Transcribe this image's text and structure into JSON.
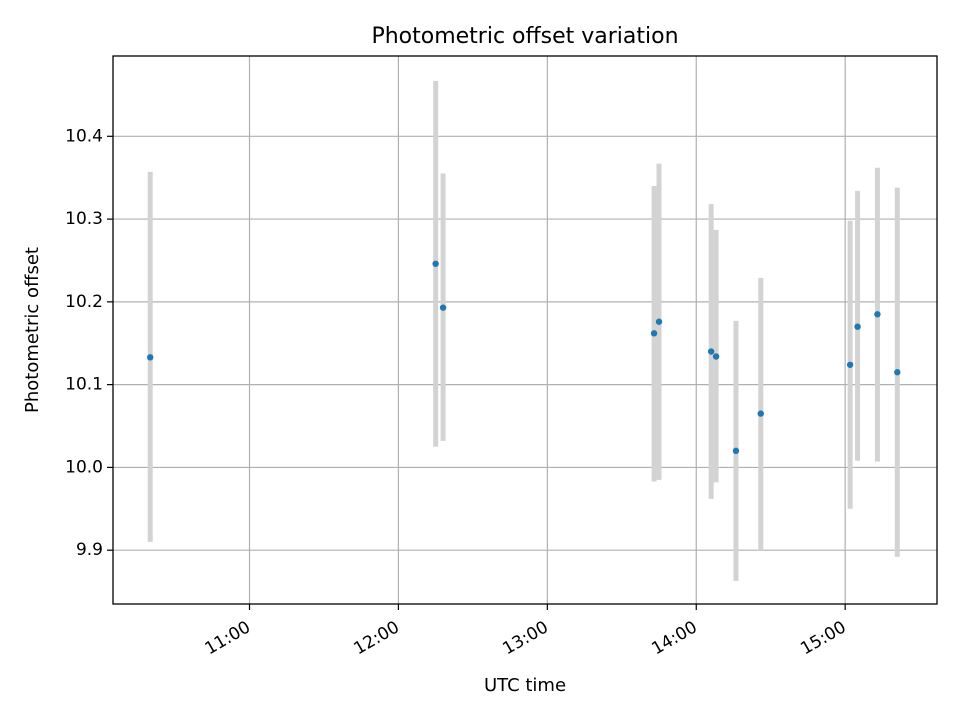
{
  "chart_data": {
    "type": "scatter",
    "title": "Photometric offset variation",
    "xlabel": "UTC time",
    "ylabel": "Photometric offset",
    "xlim": [
      "10:05",
      "15:37"
    ],
    "ylim": [
      9.835,
      10.497
    ],
    "x_ticks": [
      "11:00",
      "12:00",
      "13:00",
      "14:00",
      "15:00"
    ],
    "y_ticks": [
      9.9,
      10.0,
      10.1,
      10.2,
      10.3,
      10.4
    ],
    "grid": true,
    "legend": "none",
    "colors": {
      "point": "#1f77b4",
      "errorbar": "#d3d3d3"
    },
    "points": [
      {
        "x": "10:20",
        "y": 10.133,
        "ylow": 9.91,
        "yhigh": 10.357
      },
      {
        "x": "12:15",
        "y": 10.246,
        "ylow": 10.025,
        "yhigh": 10.467
      },
      {
        "x": "12:18",
        "y": 10.193,
        "ylow": 10.032,
        "yhigh": 10.355
      },
      {
        "x": "13:43",
        "y": 10.162,
        "ylow": 9.983,
        "yhigh": 10.34
      },
      {
        "x": "13:45",
        "y": 10.176,
        "ylow": 9.985,
        "yhigh": 10.367
      },
      {
        "x": "14:06",
        "y": 10.14,
        "ylow": 9.962,
        "yhigh": 10.318
      },
      {
        "x": "14:08",
        "y": 10.134,
        "ylow": 9.982,
        "yhigh": 10.287
      },
      {
        "x": "14:16",
        "y": 10.02,
        "ylow": 9.863,
        "yhigh": 10.177
      },
      {
        "x": "14:26",
        "y": 10.065,
        "ylow": 9.9,
        "yhigh": 10.229
      },
      {
        "x": "15:02",
        "y": 10.124,
        "ylow": 9.95,
        "yhigh": 10.298
      },
      {
        "x": "15:05",
        "y": 10.17,
        "ylow": 10.008,
        "yhigh": 10.334
      },
      {
        "x": "15:13",
        "y": 10.185,
        "ylow": 10.007,
        "yhigh": 10.362
      },
      {
        "x": "15:21",
        "y": 10.115,
        "ylow": 9.892,
        "yhigh": 10.338
      }
    ]
  }
}
